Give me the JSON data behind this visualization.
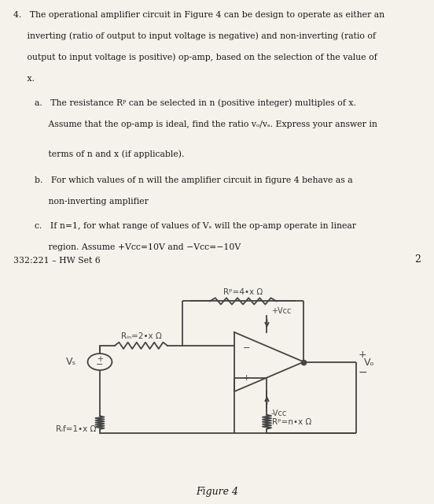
{
  "bg_top": "#f5f2ec",
  "bg_bottom": "#ddd8cc",
  "text_color": "#1a1a1a",
  "circuit_color": "#444444",
  "footer": "332:221 – HW Set 6",
  "page_num": "2",
  "figure_label": "Figure 4",
  "line1": "4.   The operational amplifier circuit in Figure 4 can be design to operate as either an",
  "line2": "     inverting (ratio of output to input voltage is negative) and non-inverting (ratio of",
  "line3": "     output to input voltage is positive) op-amp, based on the selection of the value of",
  "line4": "     x.",
  "line_a1": "a.   The resistance Rᵖ can be selected in n (positive integer) multiples of x.",
  "line_a2": "     Assume that the op-amp is ideal, find the ratio vₒ/vₛ. Express your answer in",
  "line_a3": "     terms of n and x (if applicable).",
  "line_b1": "b.   For which values of n will the amplifier circuit in figure 4 behave as a",
  "line_b2": "     non-inverting amplifier",
  "line_c1": "c.   If n=1, for what range of values of Vₛ will the op-amp operate in linear",
  "line_c2": "     region. Assume +Vcc=10V and −Vcc=−10V"
}
